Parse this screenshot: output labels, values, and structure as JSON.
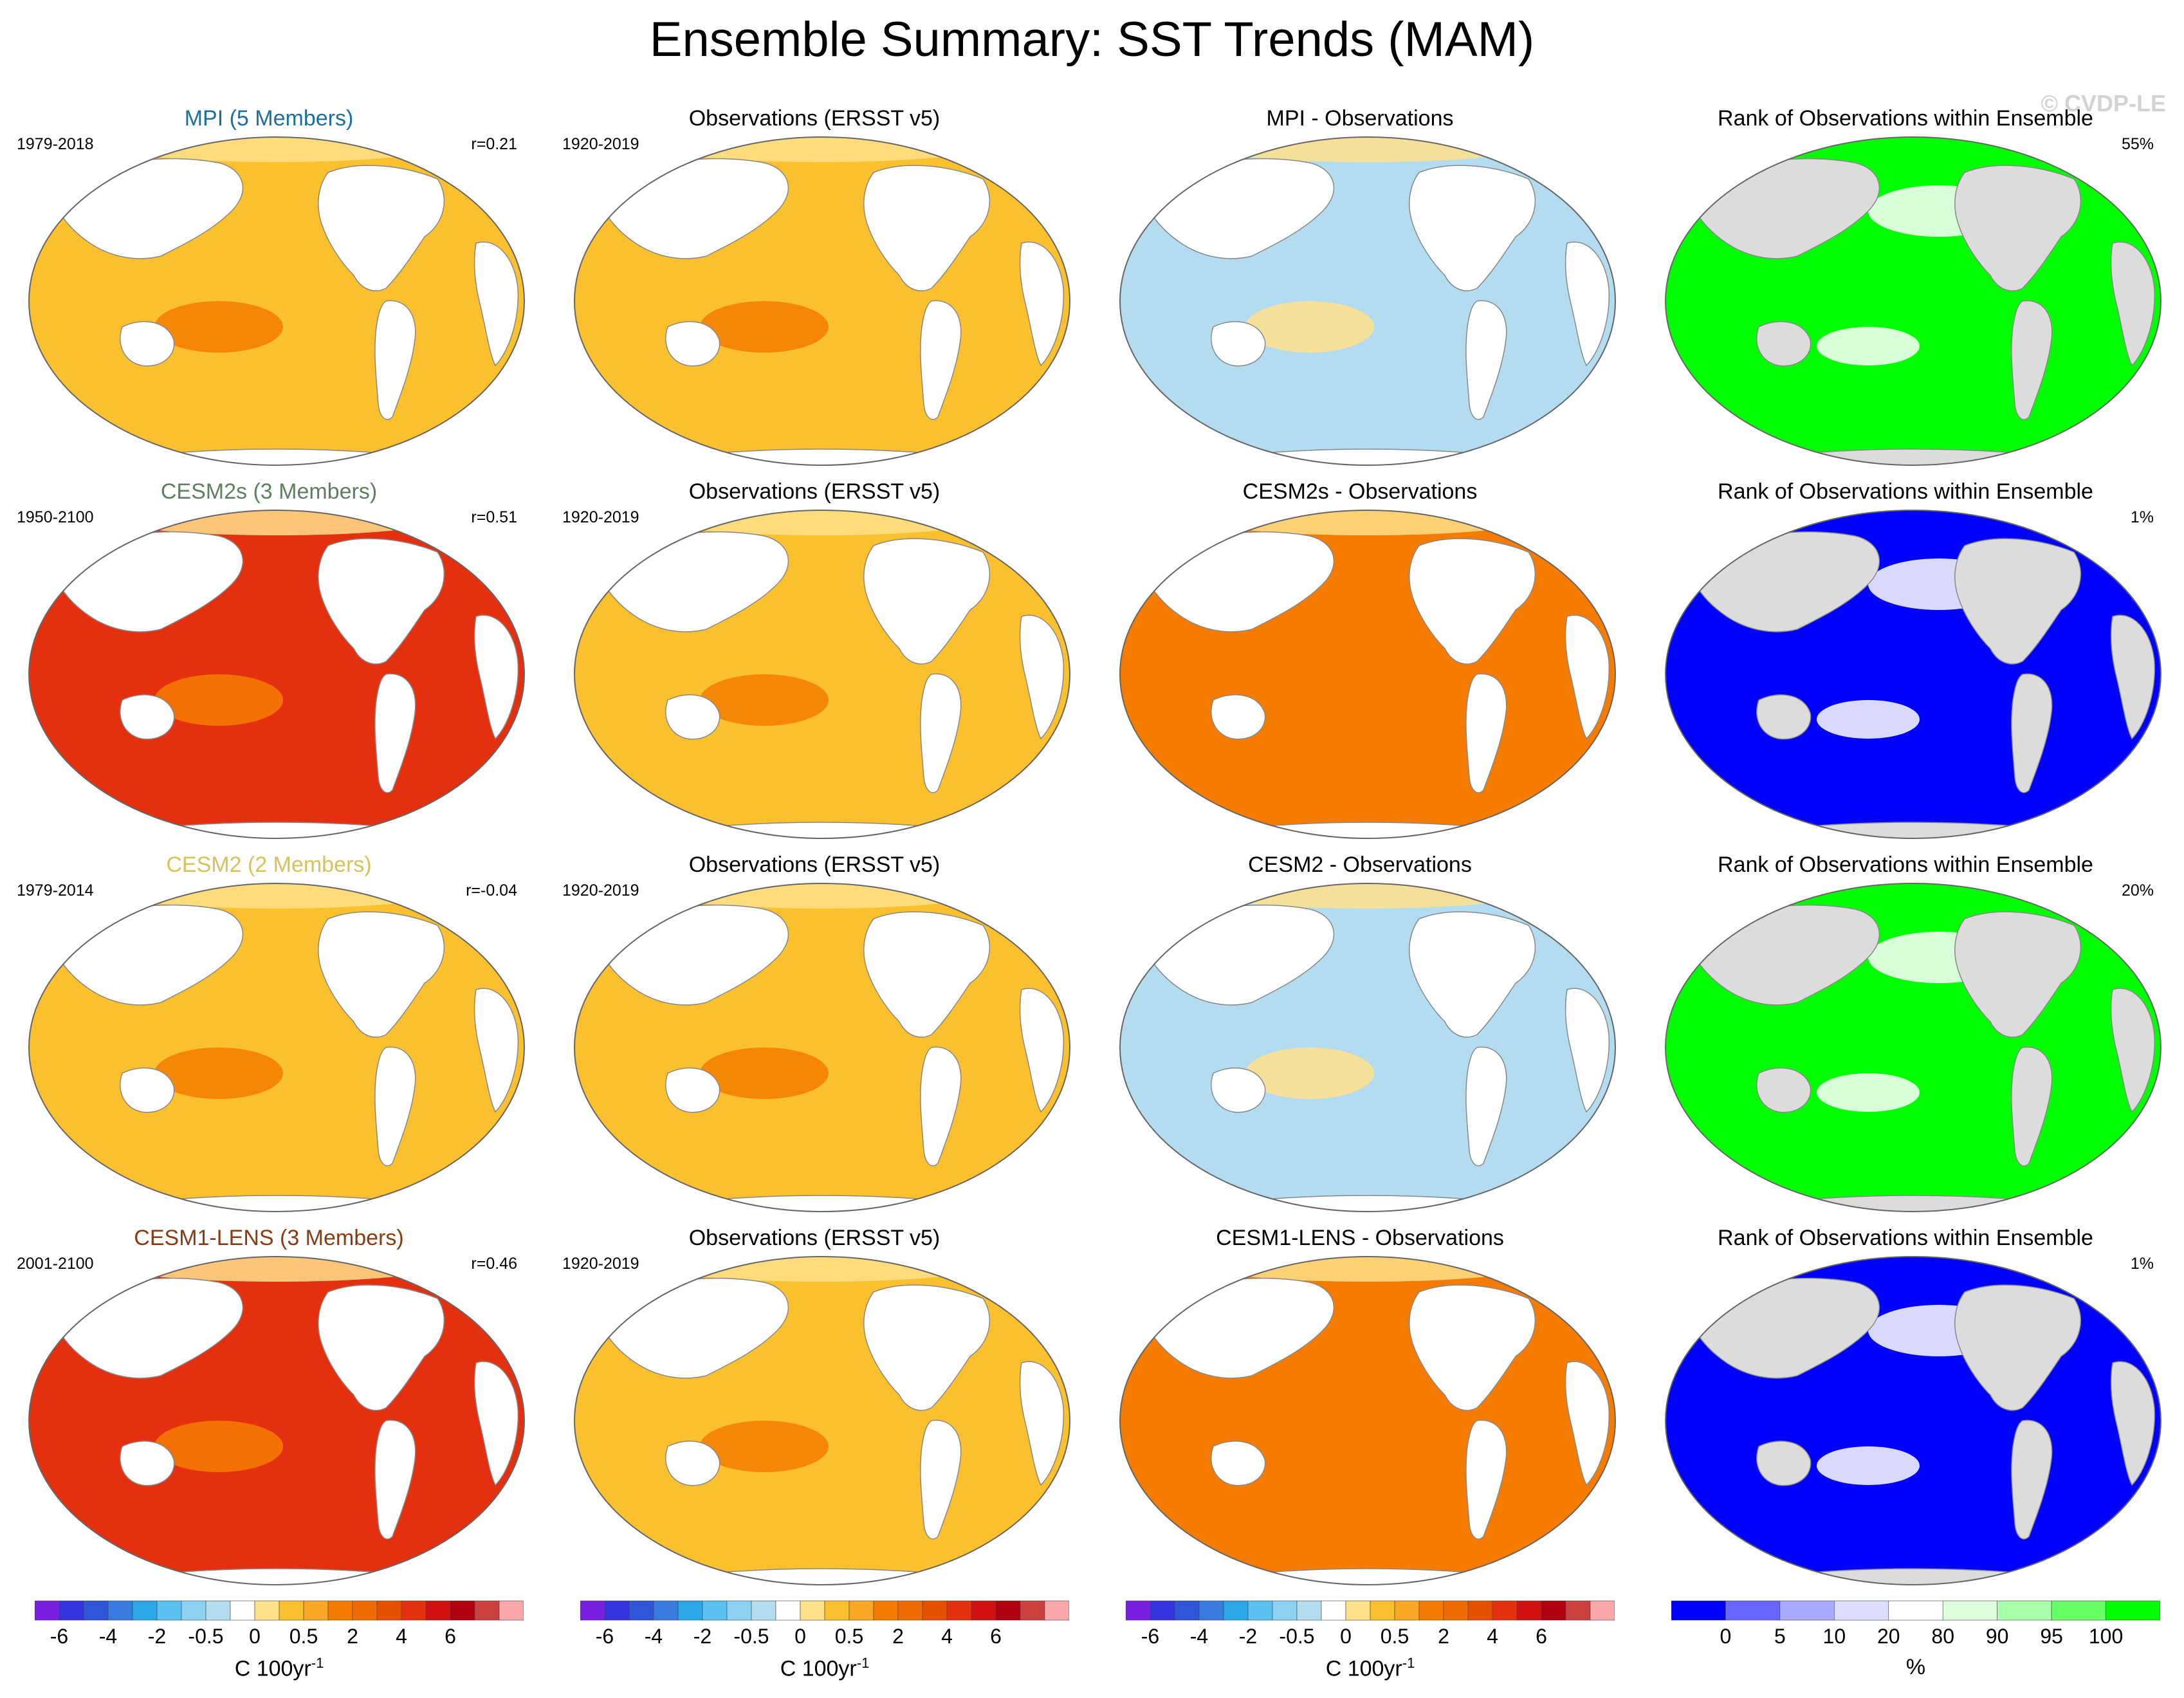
{
  "title": "Ensemble Summary: SST Trends (MAM)",
  "watermark": "© CVDP-LE",
  "colors": {
    "warm_light": "#ffe08a",
    "warm": "#fbc02d",
    "orange": "#f57c00",
    "red": "#e53010",
    "blue_light": "#b3dcf0",
    "blue": "#2aa8e8",
    "land": "#ffffff",
    "land_rank": "#dcdcdc",
    "rank_blue": "#0000ff",
    "rank_green": "#00ff00",
    "rank_white": "#ffffff"
  },
  "rows": [
    {
      "model": {
        "title": "MPI (5 Members)",
        "color": "#1b6f9e",
        "period": "1979-2018",
        "r": "r=0.21",
        "fill": "warm"
      },
      "obs": {
        "title": "Observations (ERSST v5)",
        "period": "1920-2019",
        "fill": "warm"
      },
      "diff": {
        "title": "MPI - Observations",
        "fill": "blue_light"
      },
      "rank": {
        "title": "Rank of Observations within Ensemble",
        "pct": "55%",
        "fill": "rank_green"
      }
    },
    {
      "model": {
        "title": "CESM2s (3 Members)",
        "color": "#5e8060",
        "period": "1950-2100",
        "r": "r=0.51",
        "fill": "red"
      },
      "obs": {
        "title": "Observations (ERSST v5)",
        "period": "1920-2019",
        "fill": "warm"
      },
      "diff": {
        "title": "CESM2s - Observations",
        "fill": "orange"
      },
      "rank": {
        "title": "Rank of Observations within Ensemble",
        "pct": "1%",
        "fill": "rank_blue"
      }
    },
    {
      "model": {
        "title": "CESM2 (2 Members)",
        "color": "#d8c25a",
        "period": "1979-2014",
        "r": "r=-0.04",
        "fill": "warm"
      },
      "obs": {
        "title": "Observations (ERSST v5)",
        "period": "1920-2019",
        "fill": "warm"
      },
      "diff": {
        "title": "CESM2 - Observations",
        "fill": "blue_light"
      },
      "rank": {
        "title": "Rank of Observations within Ensemble",
        "pct": "20%",
        "fill": "rank_green"
      }
    },
    {
      "model": {
        "title": "CESM1-LENS (3 Members)",
        "color": "#8b3a12",
        "period": "2001-2100",
        "r": "r=0.46",
        "fill": "red"
      },
      "obs": {
        "title": "Observations (ERSST v5)",
        "period": "1920-2019",
        "fill": "warm"
      },
      "diff": {
        "title": "CESM1-LENS - Observations",
        "fill": "orange"
      },
      "rank": {
        "title": "Rank of Observations within Ensemble",
        "pct": "1%",
        "fill": "rank_blue"
      }
    }
  ],
  "colorbar_sst": {
    "colors": [
      "#7a1ee0",
      "#3333e0",
      "#2f55d8",
      "#3a7be0",
      "#2aa8e8",
      "#5cc2f0",
      "#8dd2f0",
      "#b3dcf0",
      "#ffffff",
      "#ffe08a",
      "#fbc02d",
      "#f9a825",
      "#f57c00",
      "#ef6c00",
      "#e65100",
      "#e53010",
      "#d01010",
      "#b00010",
      "#cc4040",
      "#f8a8a8"
    ],
    "labels": [
      "-6",
      "-4",
      "-2",
      "-0.5",
      "0",
      "0.5",
      "2",
      "4",
      "6"
    ],
    "unit_text": "C 100yr",
    "unit_sup": "-1"
  },
  "colorbar_rank": {
    "colors": [
      "#0000ff",
      "#6666ff",
      "#aaaaff",
      "#ddddff",
      "#ffffff",
      "#ddffdd",
      "#aaffaa",
      "#66ff66",
      "#00ff00"
    ],
    "labels": [
      "0",
      "5",
      "10",
      "20",
      "80",
      "90",
      "95",
      "100"
    ],
    "unit_text": "%"
  }
}
